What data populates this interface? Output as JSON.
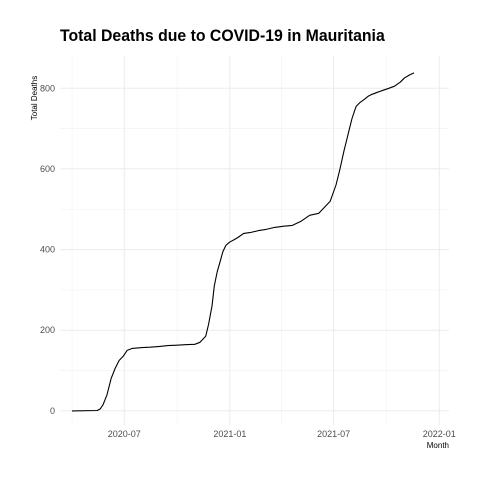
{
  "chart_data": {
    "type": "line",
    "title": "Total Deaths due to COVID-19 in Mauritania",
    "xlabel": "Month",
    "ylabel": "Total Deaths",
    "x_ticks": [
      "2020-07",
      "2021-01",
      "2021-07",
      "2022-01"
    ],
    "y_ticks": [
      0,
      200,
      400,
      600,
      800
    ],
    "ylim": [
      -35,
      880
    ],
    "xlim": [
      "2020-03-11",
      "2022-01-18"
    ],
    "grid": true,
    "series": [
      {
        "x": [
          "2020-04-01",
          "2020-05-15",
          "2020-05-20",
          "2020-05-25",
          "2020-06-01",
          "2020-06-08",
          "2020-06-15",
          "2020-06-22",
          "2020-06-29",
          "2020-07-06",
          "2020-07-15",
          "2020-08-01",
          "2020-08-15",
          "2020-09-01",
          "2020-09-15",
          "2020-10-01",
          "2020-10-15",
          "2020-11-01",
          "2020-11-10",
          "2020-11-20",
          "2020-11-25",
          "2020-12-01",
          "2020-12-05",
          "2020-12-10",
          "2020-12-15",
          "2020-12-20",
          "2020-12-25",
          "2020-12-31",
          "2021-01-08",
          "2021-01-15",
          "2021-01-25",
          "2021-02-05",
          "2021-02-20",
          "2021-03-05",
          "2021-03-20",
          "2021-04-05",
          "2021-04-20",
          "2021-05-05",
          "2021-05-20",
          "2021-06-05",
          "2021-06-15",
          "2021-06-25",
          "2021-07-05",
          "2021-07-12",
          "2021-07-19",
          "2021-07-26",
          "2021-08-02",
          "2021-08-09",
          "2021-08-16",
          "2021-08-23",
          "2021-08-30",
          "2021-09-06",
          "2021-09-15",
          "2021-09-25",
          "2021-10-05",
          "2021-10-15",
          "2021-10-25",
          "2021-11-01",
          "2021-11-10",
          "2021-11-18"
        ],
        "y": [
          0,
          1,
          5,
          15,
          40,
          80,
          105,
          125,
          135,
          150,
          155,
          157,
          158,
          160,
          162,
          163,
          164,
          165,
          170,
          185,
          215,
          260,
          310,
          345,
          370,
          395,
          410,
          418,
          424,
          430,
          440,
          442,
          447,
          450,
          455,
          458,
          460,
          470,
          485,
          490,
          505,
          520,
          560,
          600,
          645,
          685,
          725,
          755,
          765,
          772,
          780,
          785,
          790,
          795,
          800,
          805,
          815,
          825,
          833,
          838
        ]
      }
    ]
  }
}
